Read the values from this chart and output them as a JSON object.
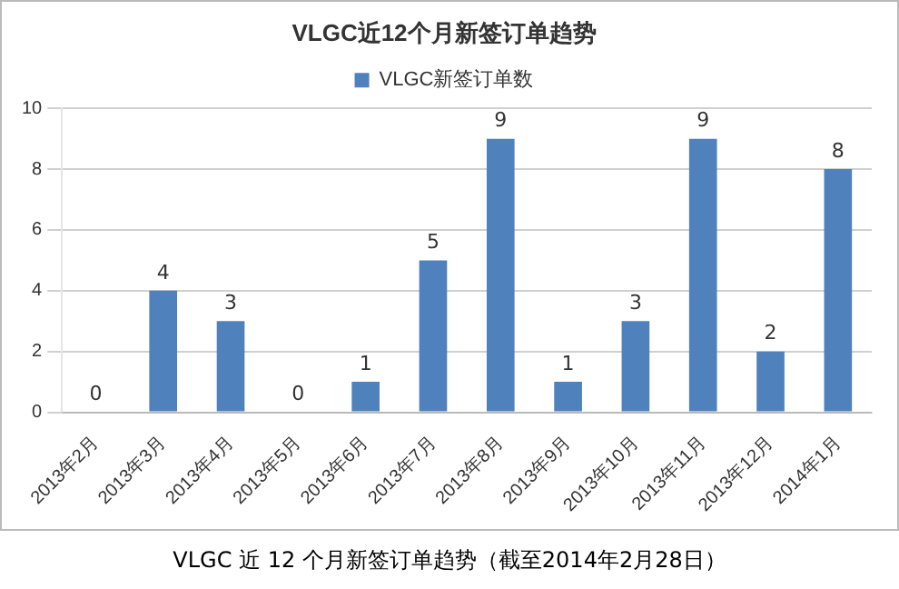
{
  "chart_data": {
    "type": "bar",
    "title": "VLGC近12个月新签订单趋势",
    "categories": [
      "2013年2月",
      "2013年3月",
      "2013年4月",
      "2013年5月",
      "2013年6月",
      "2013年7月",
      "2013年8月",
      "2013年9月",
      "2013年10月",
      "2013年11月",
      "2013年12月",
      "2014年1月"
    ],
    "series": [
      {
        "name": "VLGC新签订单数",
        "color": "#4f81bd",
        "values": [
          0,
          4,
          3,
          0,
          1,
          5,
          9,
          1,
          3,
          9,
          2,
          8
        ]
      }
    ],
    "ylim": [
      0,
      10
    ],
    "yticks": [
      0,
      2,
      4,
      6,
      8,
      10
    ],
    "grid": "y",
    "legend": "top",
    "data_labels": true,
    "annotations": [
      "VLGC 近 12 个月新签订单趋势（截至2014年2月28日）"
    ]
  }
}
